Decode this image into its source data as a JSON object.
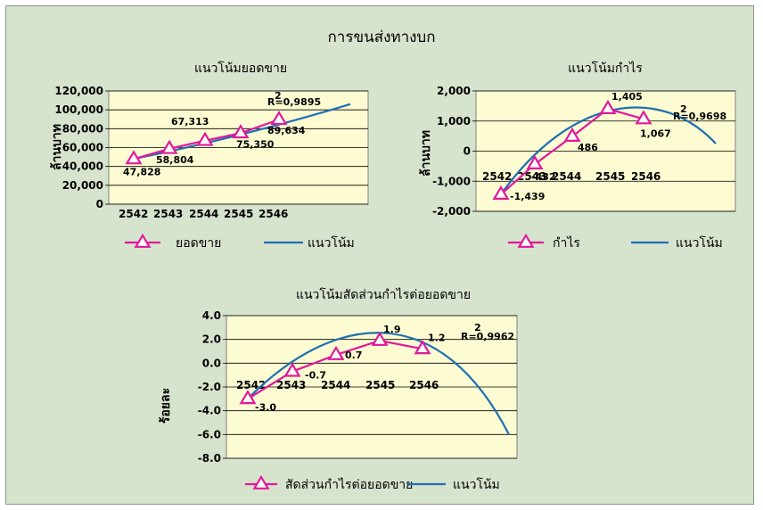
{
  "main_title": "การขนส่งทางบก",
  "colors": {
    "background": "#d6e3cd",
    "plot_area": "#fdfbd2",
    "data_series": "#e0199b",
    "trend": "#1f6fb3"
  },
  "chart_data": [
    {
      "type": "line",
      "title": "แนวโน้มยอดขาย",
      "ylabel": "ล้านบาท",
      "xlabel": "",
      "categories": [
        "2542",
        "2543",
        "2544",
        "2545",
        "2546"
      ],
      "ylim": [
        0,
        120000
      ],
      "yticks": [
        0,
        20000,
        40000,
        60000,
        80000,
        100000,
        120000
      ],
      "ytick_labels": [
        "0",
        "20,000",
        "40,000",
        "60,000",
        "80,000",
        "100,000",
        "120,000"
      ],
      "grid": true,
      "legend": "bottom",
      "r2_label": "R=0,9895",
      "r2_superscript": "2",
      "series": [
        {
          "name": "ยอดขาย",
          "values": [
            47828,
            58804,
            67313,
            75350,
            89634
          ],
          "labels": [
            "47,828",
            "58,804",
            "67,313",
            "75,350",
            "89,634"
          ],
          "marker": "triangle"
        }
      ],
      "trend": {
        "name": "แนวโน้ม",
        "x": [
          1,
          7.4
        ],
        "y": [
          48000,
          106000
        ]
      }
    },
    {
      "type": "line",
      "title": "แนวโน้มกำไร",
      "ylabel": "ล้านบาท",
      "xlabel": "",
      "categories": [
        "2542",
        "2543",
        "2544",
        "2545",
        "2546"
      ],
      "ylim": [
        -2000,
        2000
      ],
      "yticks": [
        -2000,
        -1000,
        0,
        1000,
        2000
      ],
      "ytick_labels": [
        "-2,000",
        "-1,000",
        "0",
        "1,000",
        "2,000"
      ],
      "grid": true,
      "legend": "bottom",
      "r2_label": "R=0,9698",
      "r2_superscript": "2",
      "series": [
        {
          "name": "กำไร",
          "values": [
            -1439,
            -432,
            486,
            1405,
            1067
          ],
          "labels": [
            "-1,439",
            "-432",
            "486",
            "1,405",
            "1,067"
          ],
          "marker": "triangle"
        }
      ],
      "trend": {
        "name": "แนวโน้ม",
        "x": [
          1,
          7.4
        ],
        "y": [
          -1439,
          250
        ]
      }
    },
    {
      "type": "line",
      "title": "แนวโน้มสัดส่วนกำไรต่อยอดขาย",
      "ylabel": "ร้อยละ",
      "xlabel": "",
      "categories": [
        "2542",
        "2543",
        "2544",
        "2545",
        "2546"
      ],
      "ylim": [
        -8,
        4
      ],
      "yticks": [
        -8,
        -6,
        -4,
        -2,
        0,
        2,
        4
      ],
      "ytick_labels": [
        "-8.0",
        "-6.0",
        "-4.0",
        "-2.0",
        "0.0",
        "2.0",
        "4.0"
      ],
      "grid": true,
      "legend": "bottom",
      "r2_label": "R=0,9962",
      "r2_superscript": "2",
      "series": [
        {
          "name": "สัดส่วนกำไรต่อยอดขาย",
          "values": [
            -3.0,
            -0.7,
            0.7,
            1.9,
            1.2
          ],
          "labels": [
            "-3.0",
            "-0.7",
            "0.7",
            "1.9",
            "1.2"
          ],
          "marker": "triangle"
        }
      ],
      "trend": {
        "name": "แนวโน้ม",
        "x": [
          1,
          7.4
        ],
        "y": [
          -3.0,
          -6.0
        ]
      }
    }
  ]
}
